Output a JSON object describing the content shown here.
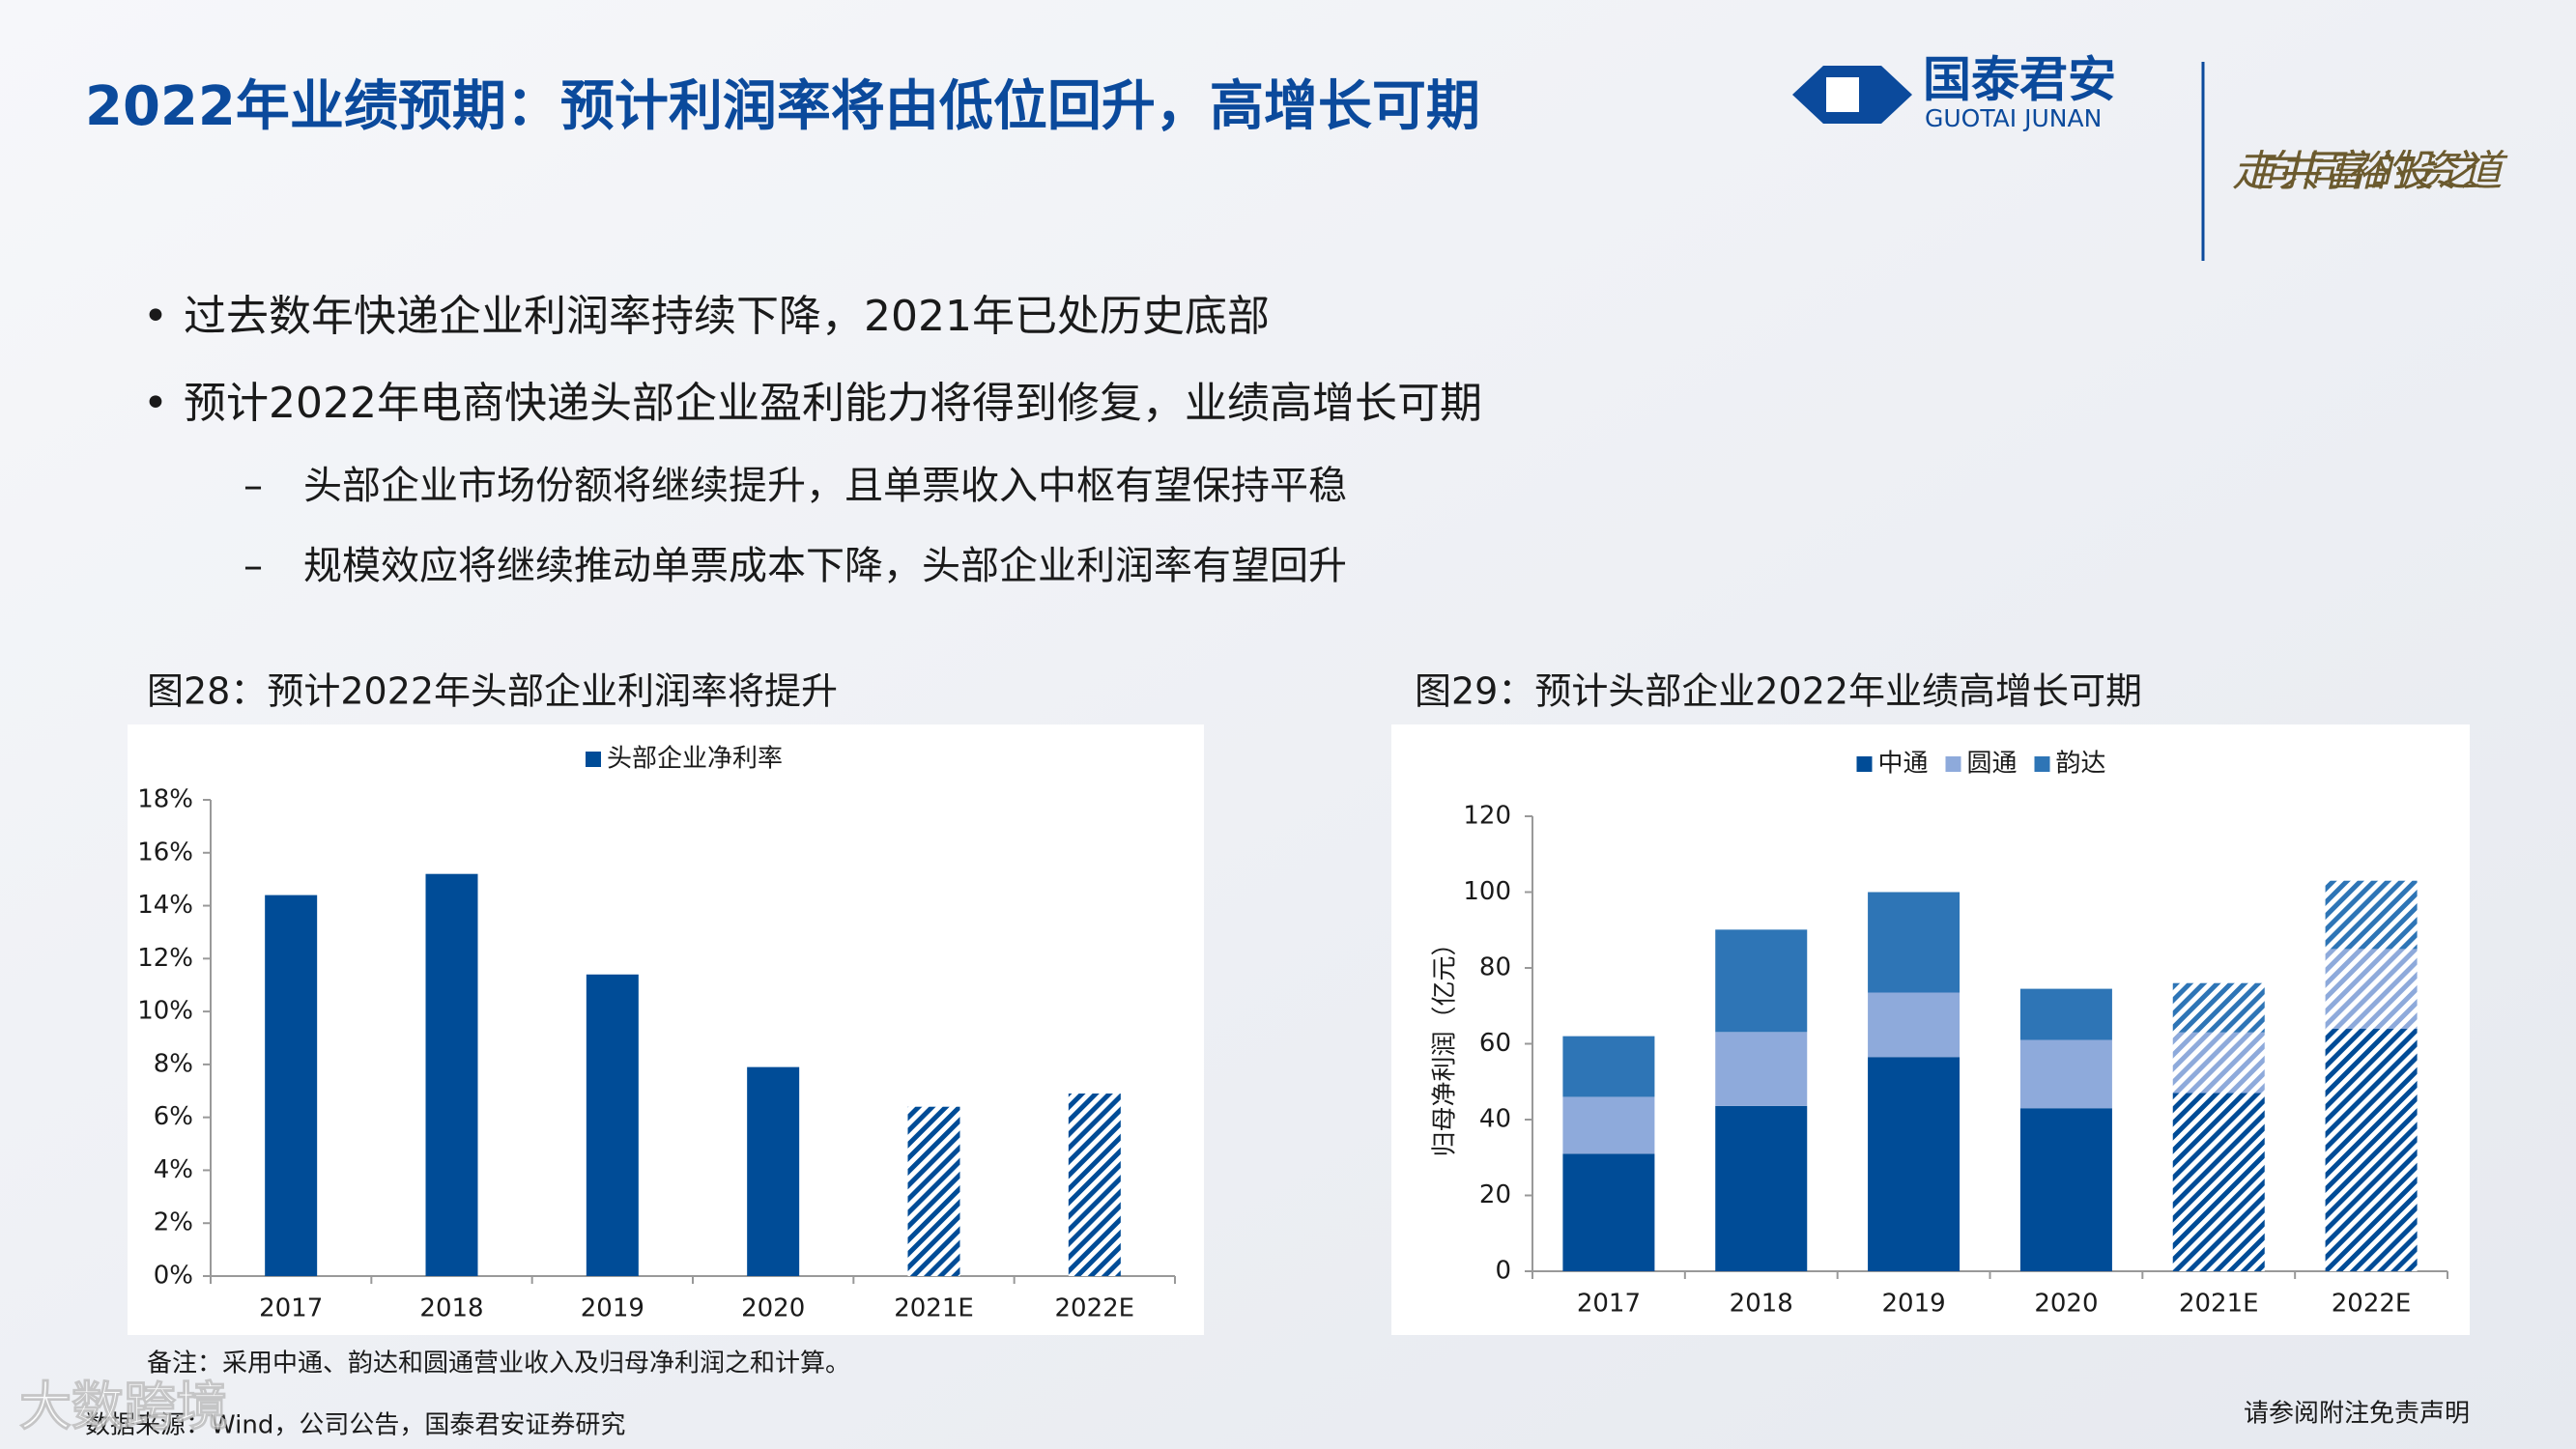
{
  "header": {
    "title": "2022年业绩预期：预计利润率将由低位回升，高增长可期",
    "logo_name": "国泰君安",
    "logo_en": "GUOTAI JUNAN",
    "slogan": "走向共同富裕的投资之道"
  },
  "bullets": [
    "过去数年快递企业利润率持续下降，2021年已处历史底部",
    "预计2022年电商快递头部企业盈利能力将得到修复，业绩高增长可期"
  ],
  "sub_bullets": [
    "头部企业市场份额将继续提升，且单票收入中枢有望保持平稳",
    "规模效应将继续推动单票成本下降，头部企业利润率有望回升"
  ],
  "figure_titles": [
    "图28：预计2022年头部企业利润率将提升",
    "图29：预计头部企业2022年业绩高增长可期"
  ],
  "note": "备注：采用中通、韵达和圆通营业收入及归母净利润之和计算。",
  "source": "数据来源：Wind，公司公告，国泰君安证券研究",
  "disclaimer": "请参阅附注免责声明",
  "watermark": "大数跨境",
  "chart_data": [
    {
      "type": "bar",
      "categories": [
        "2017",
        "2018",
        "2019",
        "2020",
        "2021E",
        "2022E"
      ],
      "series": [
        {
          "name": "头部企业净利率",
          "color": "#004c97",
          "values": [
            14.4,
            15.2,
            11.4,
            7.9,
            6.4,
            6.9
          ]
        }
      ],
      "hatched": [
        false,
        false,
        false,
        false,
        true,
        true
      ],
      "ylim": [
        0,
        18
      ],
      "yticks": [
        {
          "value": 0,
          "label": "0%"
        },
        {
          "value": 2,
          "label": "2%"
        },
        {
          "value": 4,
          "label": "4%"
        },
        {
          "value": 6,
          "label": "6%"
        },
        {
          "value": 8,
          "label": "8%"
        },
        {
          "value": 10,
          "label": "10%"
        },
        {
          "value": 12,
          "label": "12%"
        },
        {
          "value": 14,
          "label": "14%"
        },
        {
          "value": 16,
          "label": "16%"
        },
        {
          "value": 18,
          "label": "18%"
        }
      ]
    },
    {
      "type": "bar",
      "stacked": true,
      "y_label": "归母净利润（亿元）",
      "categories": [
        "2017",
        "2018",
        "2019",
        "2020",
        "2021E",
        "2022E"
      ],
      "series": [
        {
          "name": "中通",
          "color": "#004c97",
          "values": [
            31,
            43.6,
            56.5,
            43,
            47,
            64
          ]
        },
        {
          "name": "圆通",
          "color": "#8eaadb",
          "values": [
            15,
            19.5,
            17,
            18,
            16,
            21
          ]
        },
        {
          "name": "韵达",
          "color": "#2e75b6",
          "values": [
            16,
            27,
            26.5,
            13.5,
            13,
            18
          ]
        }
      ],
      "hatched": [
        false,
        false,
        false,
        false,
        true,
        true
      ],
      "ylim": [
        0,
        120
      ],
      "yticks": [
        0,
        20,
        40,
        60,
        80,
        100,
        120
      ]
    }
  ]
}
